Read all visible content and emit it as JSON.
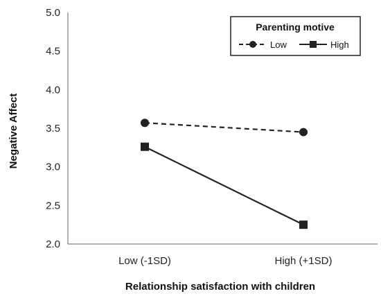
{
  "chart_data": {
    "type": "line",
    "title": "",
    "xlabel": "Relationship satisfaction with children",
    "ylabel": "Negative Affect",
    "categories": [
      "Low (-1SD)",
      "High (+1SD)"
    ],
    "ylim": [
      2.0,
      5.0
    ],
    "yticks": [
      "2.0",
      "2.5",
      "3.0",
      "3.5",
      "4.0",
      "4.5",
      "5.0"
    ],
    "grid": false,
    "legend": {
      "title": "Parenting motive",
      "placement": "top-right"
    },
    "series": [
      {
        "name": "Low",
        "values": [
          3.57,
          3.45
        ],
        "style": "dashed",
        "marker": "circle",
        "color": "#222222"
      },
      {
        "name": "High",
        "values": [
          3.26,
          2.25
        ],
        "style": "solid",
        "marker": "square",
        "color": "#222222"
      }
    ]
  }
}
